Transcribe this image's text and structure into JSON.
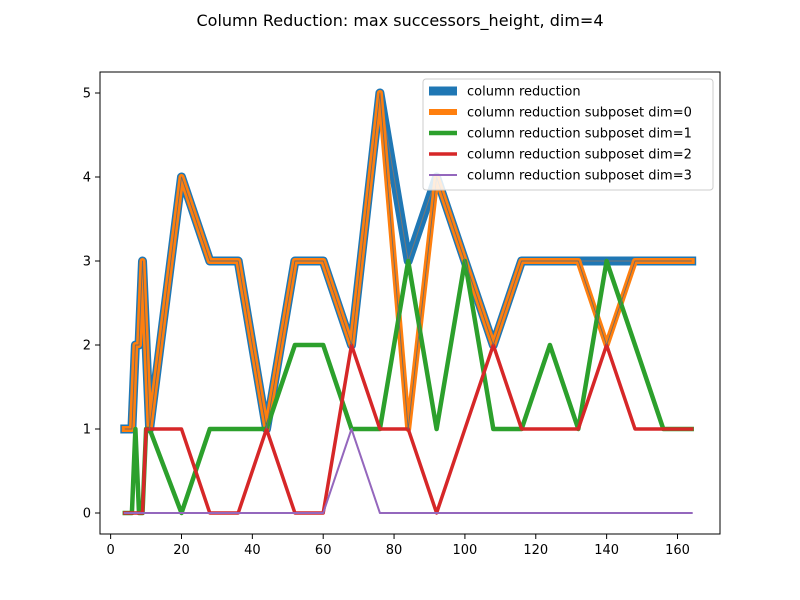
{
  "chart_data": {
    "type": "line",
    "title": "Column Reduction: max successors_height, dim=4",
    "xlabel": "",
    "ylabel": "",
    "xlim": [
      -3,
      172
    ],
    "ylim": [
      -0.25,
      5.25
    ],
    "x_ticks": [
      0,
      20,
      40,
      60,
      80,
      100,
      120,
      140,
      160
    ],
    "y_ticks": [
      0,
      1,
      2,
      3,
      4,
      5
    ],
    "grid": false,
    "legend_position": "top-right",
    "series": [
      {
        "name": "column reduction",
        "color": "#1f77b4",
        "x": [
          4,
          5,
          6,
          7,
          8,
          9,
          10,
          11,
          20,
          28,
          36,
          44,
          52,
          60,
          68,
          76,
          84,
          92,
          100,
          108,
          116,
          124,
          132,
          140,
          148,
          156,
          164
        ],
        "y": [
          1,
          1,
          1,
          2,
          2,
          3,
          2,
          1,
          4,
          3,
          3,
          1,
          3,
          3,
          2,
          5,
          3,
          4,
          3,
          2,
          3,
          3,
          3,
          3,
          3,
          3,
          3
        ]
      },
      {
        "name": "column reduction subposet dim=0",
        "color": "#ff7f0e",
        "x": [
          4,
          5,
          6,
          7,
          8,
          9,
          10,
          11,
          20,
          28,
          36,
          44,
          52,
          60,
          68,
          76,
          84,
          92,
          100,
          108,
          116,
          124,
          132,
          140,
          148,
          156,
          164
        ],
        "y": [
          1,
          1,
          1,
          2,
          2,
          3,
          2,
          1,
          4,
          3,
          3,
          1,
          3,
          3,
          2,
          5,
          1,
          4,
          3,
          2,
          3,
          3,
          3,
          2,
          3,
          3,
          3
        ]
      },
      {
        "name": "column reduction subposet dim=1",
        "color": "#2ca02c",
        "x": [
          4,
          5,
          6,
          7,
          8,
          9,
          10,
          11,
          20,
          28,
          36,
          44,
          52,
          60,
          68,
          76,
          84,
          92,
          100,
          108,
          116,
          124,
          132,
          140,
          148,
          156,
          164
        ],
        "y": [
          0,
          0,
          0,
          1,
          0,
          0,
          1,
          1,
          0,
          1,
          1,
          1,
          2,
          2,
          1,
          1,
          3,
          1,
          3,
          1,
          1,
          2,
          1,
          3,
          2,
          1,
          1
        ]
      },
      {
        "name": "column reduction subposet dim=2",
        "color": "#d62728",
        "x": [
          4,
          5,
          6,
          7,
          8,
          9,
          10,
          11,
          20,
          28,
          36,
          44,
          52,
          60,
          68,
          76,
          84,
          92,
          100,
          108,
          116,
          124,
          132,
          140,
          148,
          156,
          164
        ],
        "y": [
          0,
          0,
          0,
          0,
          0,
          0,
          1,
          1,
          1,
          0,
          0,
          1,
          0,
          0,
          2,
          1,
          1,
          0,
          1,
          2,
          1,
          1,
          1,
          2,
          1,
          1,
          1
        ]
      },
      {
        "name": "column reduction subposet dim=3",
        "color": "#9467bd",
        "x": [
          4,
          5,
          6,
          7,
          8,
          9,
          10,
          11,
          20,
          28,
          36,
          44,
          52,
          60,
          68,
          76,
          84,
          92,
          100,
          108,
          116,
          124,
          132,
          140,
          148,
          156,
          164
        ],
        "y": [
          0,
          0,
          0,
          0,
          0,
          0,
          0,
          0,
          0,
          0,
          0,
          0,
          0,
          0,
          1,
          0,
          0,
          0,
          0,
          0,
          0,
          0,
          0,
          0,
          0,
          0,
          0
        ]
      }
    ]
  }
}
